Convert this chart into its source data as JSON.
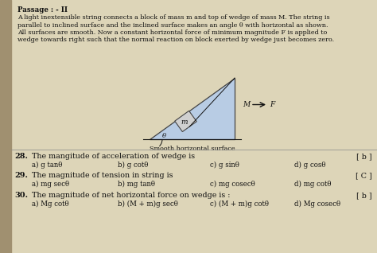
{
  "bg_color": "#c8bfa0",
  "content_color": "#ddd5b8",
  "left_strip_color": "#a09070",
  "passage_title": "Passage : - II",
  "passage_lines": [
    "A light inextensible string connects a block of mass m and top of wedge of mass M. The string is",
    "parallel to inclined surface and the inclined surface makes an angle θ with horizontal as shown.",
    "All surfaces are smooth. Now a constant horizontal force of minimum magnitude F is applied to",
    "wedge towards right such that the normal reaction on block exerted by wedge just becomes zero."
  ],
  "diagram_bottom": "Smooth horizontal surface",
  "label_m": "m",
  "label_M": "M",
  "label_F": "F",
  "label_theta": "θ",
  "q28_num": "28.",
  "q28_text": "The mangitude of acceleration of wedge is",
  "q28_ans": "[ b ]",
  "q28_a": "a) g tanθ",
  "q28_b": "b) g cotθ",
  "q28_c": "c) g sinθ",
  "q28_d": "d) g cosθ",
  "q29_num": "29.",
  "q29_text": "The magnitude of tension in string is",
  "q29_ans": "[ C ]",
  "q29_a": "a) mg secθ",
  "q29_b": "b) mg tanθ",
  "q29_c": "c) mg cosecθ",
  "q29_d": "d) mg cotθ",
  "q30_num": "30.",
  "q30_text": "The magnitude of net horizontal force on wedge is :",
  "q30_ans": "[ b ]",
  "q30_a": "a) Mg cotθ",
  "q30_b": "b) (M + m)g secθ",
  "q30_c": "c) (M + m)g cotθ",
  "q30_d": "d) Mg cosecθ",
  "text_color": "#111111",
  "wedge_fill": "#b8cce4",
  "wedge_edge": "#444444",
  "block_fill": "#d0d0d0",
  "line_color": "#555555"
}
